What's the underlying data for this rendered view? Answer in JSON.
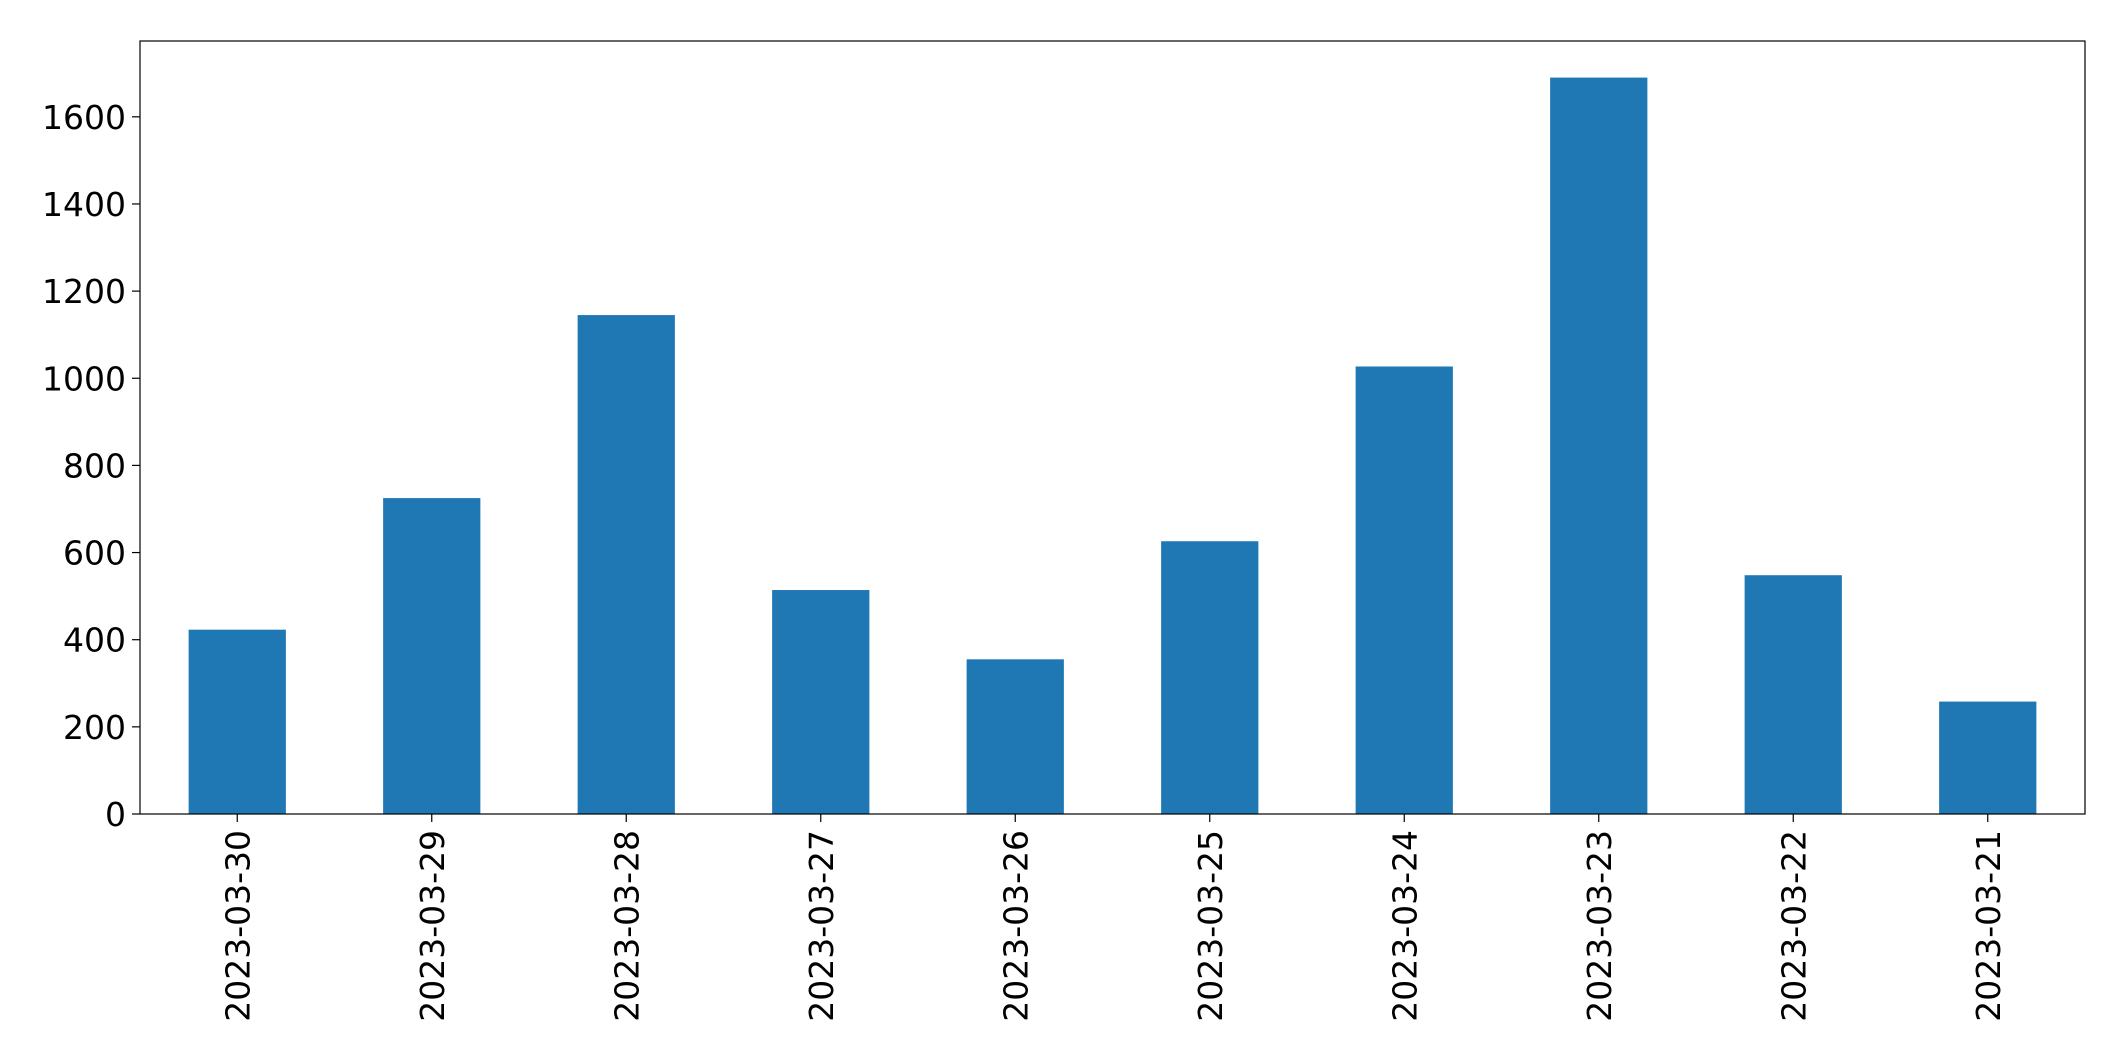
{
  "chart_data": {
    "type": "bar",
    "categories": [
      "2023-03-30",
      "2023-03-29",
      "2023-03-28",
      "2023-03-27",
      "2023-03-26",
      "2023-03-25",
      "2023-03-24",
      "2023-03-23",
      "2023-03-22",
      "2023-03-21"
    ],
    "values": [
      423,
      725,
      1145,
      514,
      355,
      626,
      1027,
      1690,
      548,
      258
    ],
    "color": "#1f77b4",
    "ylim": [
      0,
      1774
    ],
    "yticks": [
      0,
      200,
      400,
      600,
      800,
      1000,
      1200,
      1400,
      1600
    ],
    "grid": false
  }
}
